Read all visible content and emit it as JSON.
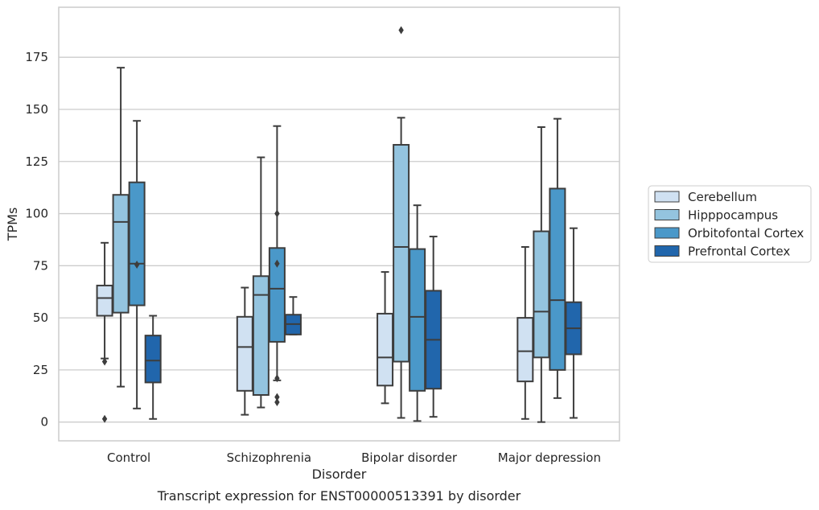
{
  "chart_data": {
    "type": "box",
    "xlabel": "Disorder",
    "ylabel": "TPMs",
    "caption": "Transcript expression for ENST00000513391 by disorder",
    "ylim": [
      -9,
      199
    ],
    "yticks": [
      0,
      25,
      50,
      75,
      100,
      125,
      150,
      175
    ],
    "grid": "horizontal",
    "legend_position": "right",
    "categories": [
      "Control",
      "Schizophrenia",
      "Bipolar disorder",
      "Major depression"
    ],
    "series": [
      {
        "name": "Cerebellum",
        "color": "#d0e1f2",
        "boxes": [
          {
            "whislo": 30.5,
            "q1": 51,
            "med": 59.5,
            "q3": 65.5,
            "whishi": 86,
            "fliers": [
              29,
              1.5
            ]
          },
          {
            "whislo": 3.5,
            "q1": 15,
            "med": 36,
            "q3": 50.5,
            "whishi": 64.5,
            "fliers": []
          },
          {
            "whislo": 9,
            "q1": 17.5,
            "med": 31,
            "q3": 52,
            "whishi": 72,
            "fliers": []
          },
          {
            "whislo": 1.5,
            "q1": 19.5,
            "med": 34,
            "q3": 50,
            "whishi": 84,
            "fliers": []
          }
        ]
      },
      {
        "name": "Hipppocampus",
        "color": "#94c4df",
        "boxes": [
          {
            "whislo": 17,
            "q1": 52.5,
            "med": 96,
            "q3": 109,
            "whishi": 170,
            "fliers": []
          },
          {
            "whislo": 7,
            "q1": 13,
            "med": 61,
            "q3": 70,
            "whishi": 127,
            "fliers": []
          },
          {
            "whislo": 2,
            "q1": 29,
            "med": 84,
            "q3": 133,
            "whishi": 146,
            "fliers": [
              188
            ]
          },
          {
            "whislo": 0,
            "q1": 31,
            "med": 53,
            "q3": 91.5,
            "whishi": 141.5,
            "fliers": []
          }
        ]
      },
      {
        "name": "Orbitofontal Cortex",
        "color": "#4a98c9",
        "boxes": [
          {
            "whislo": 6.5,
            "q1": 56,
            "med": 76,
            "q3": 115,
            "whishi": 144.5,
            "fliers": [
              75.5
            ]
          },
          {
            "whislo": 20,
            "q1": 38.5,
            "med": 64,
            "q3": 83.5,
            "whishi": 142,
            "fliers": [
              100,
              76,
              21,
              12,
              9.5
            ]
          },
          {
            "whislo": 0.5,
            "q1": 15,
            "med": 50.5,
            "q3": 83,
            "whishi": 104,
            "fliers": []
          },
          {
            "whislo": 11.5,
            "q1": 25,
            "med": 58.5,
            "q3": 112,
            "whishi": 145.5,
            "fliers": []
          }
        ]
      },
      {
        "name": "Prefrontal Cortex",
        "color": "#2166ac",
        "boxes": [
          {
            "whislo": 1.5,
            "q1": 19,
            "med": 29.5,
            "q3": 41.5,
            "whishi": 51,
            "fliers": []
          },
          {
            "whislo": 42,
            "q1": 42,
            "med": 47,
            "q3": 51.5,
            "whishi": 60,
            "fliers": []
          },
          {
            "whislo": 2.5,
            "q1": 16,
            "med": 39.5,
            "q3": 63,
            "whishi": 89,
            "fliers": []
          },
          {
            "whislo": 2,
            "q1": 32.5,
            "med": 45,
            "q3": 57.5,
            "whishi": 93,
            "fliers": []
          }
        ]
      }
    ]
  }
}
